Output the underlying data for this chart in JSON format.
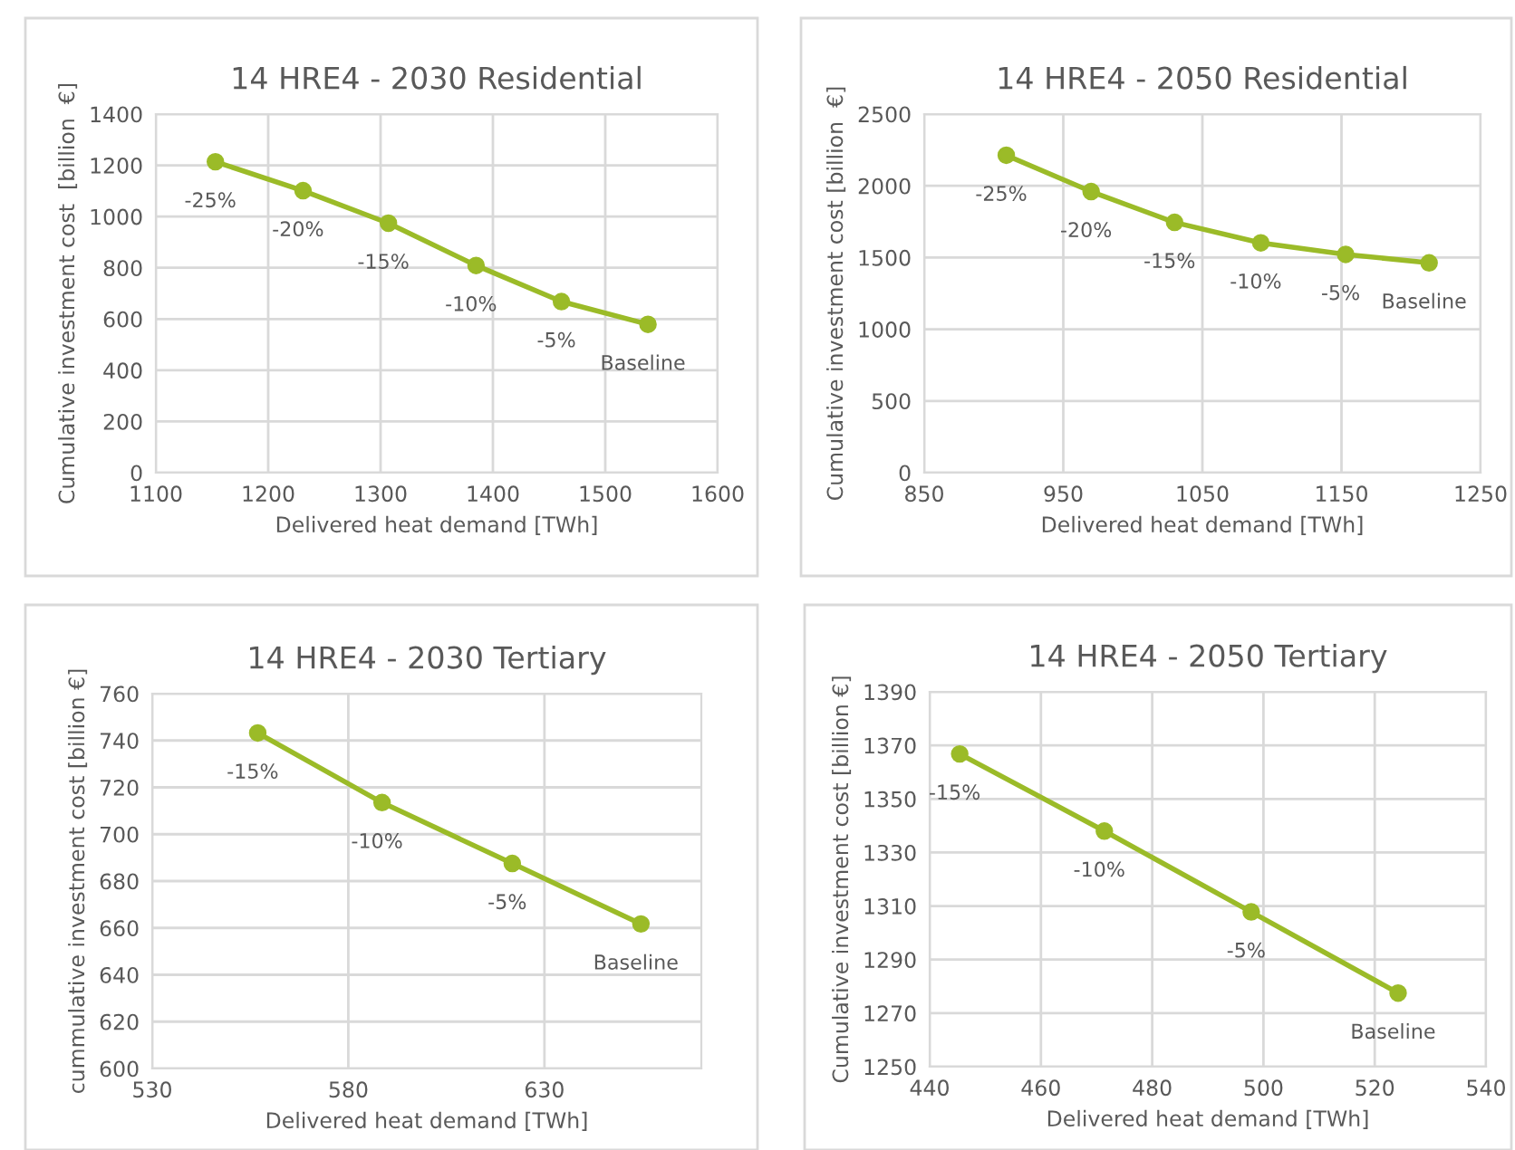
{
  "chart_data": [
    {
      "type": "line",
      "title": "14 HRE4 - 2030 Residential",
      "xlabel": "Delivered heat demand [TWh]",
      "ylabel": "Cumulative investment cost  [billion  €]",
      "x": [
        1153,
        1231,
        1307,
        1385,
        1461,
        1538
      ],
      "series": [
        {
          "color": "#9bbb28",
          "values": [
            1214,
            1101,
            974,
            809,
            668,
            579
          ]
        }
      ],
      "xlim": [
        1100,
        1600
      ],
      "xticks": [
        1100,
        1200,
        1300,
        1400,
        1500,
        1600
      ],
      "ylim": [
        0,
        1400
      ],
      "yticks": [
        0,
        200,
        400,
        600,
        800,
        1000,
        1200,
        1400
      ],
      "grid": true,
      "marker": "circle",
      "line_style": "solid",
      "annotations": [
        {
          "text": "-25%",
          "x": 1153,
          "y": 1214
        },
        {
          "text": "-20%",
          "x": 1231,
          "y": 1101
        },
        {
          "text": "-15%",
          "x": 1307,
          "y": 974
        },
        {
          "text": "-10%",
          "x": 1385,
          "y": 809
        },
        {
          "text": "-5%",
          "x": 1461,
          "y": 668
        },
        {
          "text": "Baseline",
          "x": 1538,
          "y": 579
        }
      ]
    },
    {
      "type": "line",
      "title": "14 HRE4 - 2050 Residential",
      "xlabel": "Delivered heat demand [TWh]",
      "ylabel": "Cumulative investment cost [billion  €]",
      "x": [
        909,
        970,
        1030,
        1092,
        1153,
        1213
      ],
      "series": [
        {
          "color": "#9bbb28",
          "values": [
            2213,
            1960,
            1745,
            1602,
            1522,
            1463
          ]
        }
      ],
      "xlim": [
        850,
        1250
      ],
      "xticks": [
        850,
        950,
        1050,
        1150,
        1250
      ],
      "ylim": [
        0,
        2500
      ],
      "yticks": [
        0,
        500,
        1000,
        1500,
        2000,
        2500
      ],
      "grid": true,
      "marker": "circle",
      "line_style": "solid",
      "annotations": [
        {
          "text": "-25%",
          "x": 909,
          "y": 2213
        },
        {
          "text": "-20%",
          "x": 970,
          "y": 1960
        },
        {
          "text": "-15%",
          "x": 1030,
          "y": 1745
        },
        {
          "text": "-10%",
          "x": 1092,
          "y": 1602
        },
        {
          "text": "-5%",
          "x": 1153,
          "y": 1522
        },
        {
          "text": "Baseline",
          "x": 1213,
          "y": 1463
        }
      ]
    },
    {
      "type": "line",
      "title": "14 HRE4 - 2030 Tertiary",
      "xlabel": "Delivered heat demand [TWh]",
      "ylabel": "cummulative investment cost [billion €]",
      "x": [
        556.9,
        588.6,
        621.8,
        654.6
      ],
      "series": [
        {
          "color": "#9bbb28",
          "values": [
            743.2,
            713.5,
            687.5,
            661.7
          ]
        }
      ],
      "xlim": [
        530,
        670
      ],
      "xticks": [
        530,
        580,
        630
      ],
      "ylim": [
        600,
        760
      ],
      "yticks": [
        600,
        620,
        640,
        660,
        680,
        700,
        720,
        740,
        760
      ],
      "grid": true,
      "marker": "circle",
      "line_style": "solid",
      "annotations": [
        {
          "text": "-15%",
          "x": 556.9,
          "y": 743.2
        },
        {
          "text": "-10%",
          "x": 588.6,
          "y": 713.5
        },
        {
          "text": "-5%",
          "x": 621.8,
          "y": 687.5
        },
        {
          "text": "Baseline",
          "x": 654.6,
          "y": 661.7
        }
      ]
    },
    {
      "type": "line",
      "title": "14 HRE4 - 2050 Tertiary",
      "xlabel": "Delivered heat demand [TWh]",
      "ylabel": "Cumulative investment cost [billion €]",
      "x": [
        445.4,
        471.4,
        497.8,
        524.2
      ],
      "series": [
        {
          "color": "#9bbb28",
          "values": [
            1366.8,
            1338.0,
            1307.8,
            1277.5
          ]
        }
      ],
      "xlim": [
        440,
        540
      ],
      "xticks": [
        440,
        460,
        480,
        500,
        520,
        540
      ],
      "ylim": [
        1250,
        1390
      ],
      "yticks": [
        1250,
        1270,
        1290,
        1310,
        1330,
        1350,
        1370,
        1390
      ],
      "grid": true,
      "marker": "circle",
      "line_style": "solid",
      "annotations": [
        {
          "text": "-15%",
          "x": 445.4,
          "y": 1366.8
        },
        {
          "text": "-10%",
          "x": 471.4,
          "y": 1338.0
        },
        {
          "text": "-5%",
          "x": 497.8,
          "y": 1307.8
        },
        {
          "text": "Baseline",
          "x": 524.2,
          "y": 1277.5
        }
      ]
    }
  ]
}
